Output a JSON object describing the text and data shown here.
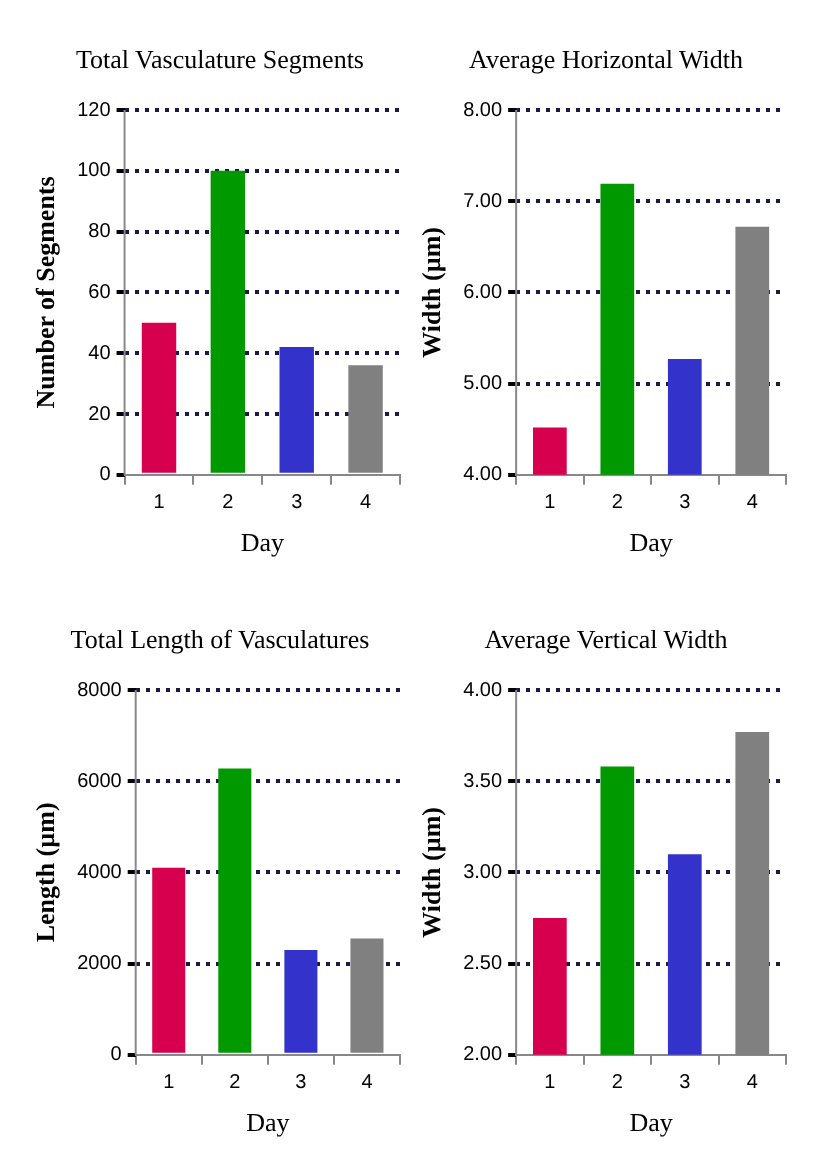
{
  "chart_data": [
    {
      "type": "bar",
      "title": "Total Vasculature Segments",
      "xlabel": "Day",
      "ylabel": "Number of Segments",
      "categories": [
        "1",
        "2",
        "3",
        "4"
      ],
      "values": [
        50,
        100,
        42,
        36
      ],
      "colors": [
        "#d6004f",
        "#009900",
        "#3333cc",
        "#808080"
      ],
      "ylim": [
        0,
        120
      ],
      "yticks": [
        0,
        20,
        40,
        60,
        80,
        100,
        120
      ],
      "grid": "y"
    },
    {
      "type": "bar",
      "title": "Average Horizontal Width",
      "xlabel": "Day",
      "ylabel": "Width (µm)",
      "categories": [
        "1",
        "2",
        "3",
        "4"
      ],
      "values": [
        4.52,
        7.19,
        5.27,
        6.72
      ],
      "colors": [
        "#d6004f",
        "#009900",
        "#3333cc",
        "#808080"
      ],
      "ylim": [
        4,
        8
      ],
      "yticks": [
        {
          "value": 4,
          "label": "4.00"
        },
        {
          "value": 5,
          "label": "5.00"
        },
        {
          "value": 6,
          "label": "6.00"
        },
        {
          "value": 7,
          "label": "7.00"
        },
        {
          "value": 8,
          "label": "8.00"
        }
      ],
      "grid": "y"
    },
    {
      "type": "bar",
      "title": "Total Length of Vasculatures",
      "xlabel": "Day",
      "ylabel": "Length (µm)",
      "categories": [
        "1",
        "2",
        "3",
        "4"
      ],
      "values": [
        4100,
        6280,
        2300,
        2550
      ],
      "colors": [
        "#d6004f",
        "#009900",
        "#3333cc",
        "#808080"
      ],
      "ylim": [
        0,
        8000
      ],
      "yticks": [
        0,
        2000,
        4000,
        6000,
        8000
      ],
      "grid": "y"
    },
    {
      "type": "bar",
      "title": "Average Vertical Width",
      "xlabel": "Day",
      "ylabel": "Width (µm)",
      "categories": [
        "1",
        "2",
        "3",
        "4"
      ],
      "values": [
        2.75,
        3.58,
        3.1,
        3.77
      ],
      "colors": [
        "#d6004f",
        "#009900",
        "#3333cc",
        "#808080"
      ],
      "ylim": [
        2,
        4
      ],
      "yticks": [
        {
          "value": 2,
          "label": "2.00"
        },
        {
          "value": 2.5,
          "label": "2.50"
        },
        {
          "value": 3,
          "label": "3.00"
        },
        {
          "value": 3.5,
          "label": "3.50"
        },
        {
          "value": 4,
          "label": "4.00"
        }
      ],
      "grid": "y"
    }
  ]
}
